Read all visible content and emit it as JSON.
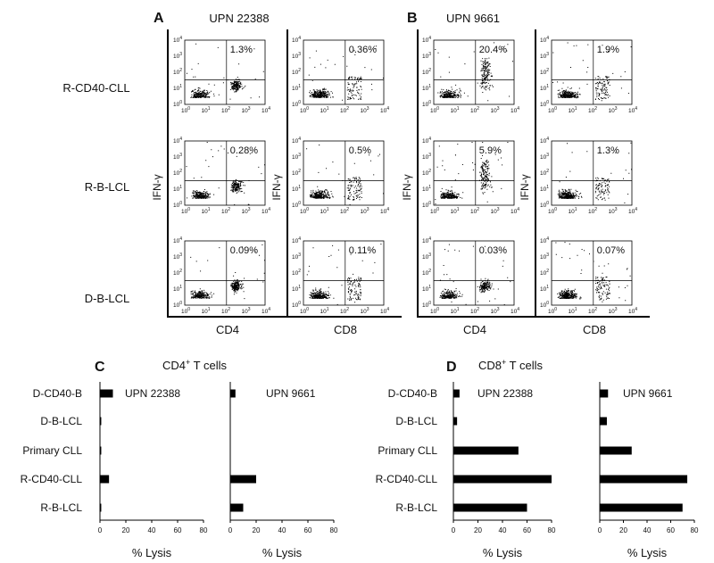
{
  "panel_labels": {
    "A": "A",
    "B": "B",
    "C": "C",
    "D": "D"
  },
  "row_labels": [
    "R-CD40-CLL",
    "R-B-LCL",
    "D-B-LCL"
  ],
  "flow_tick_labels": [
    "10",
    "10",
    "10",
    "10",
    "10"
  ],
  "flow_tick_exponents": [
    "0",
    "1",
    "2",
    "3",
    "4"
  ],
  "chart_data": [
    {
      "type": "scatter",
      "panel": "A",
      "title": "UPN 22388",
      "ylabel": "IFN-γ",
      "xlim": [
        1,
        10000
      ],
      "ylim": [
        1,
        10000
      ],
      "scale": "log",
      "columns": [
        {
          "xlabel": "CD4",
          "percentages": [
            "1.3%",
            "0.28%",
            "0.09%"
          ]
        },
        {
          "xlabel": "CD8",
          "percentages": [
            "0.36%",
            "0.5%",
            "0.11%"
          ]
        }
      ]
    },
    {
      "type": "scatter",
      "panel": "B",
      "title": "UPN 9661",
      "ylabel": "IFN-γ",
      "xlim": [
        1,
        10000
      ],
      "ylim": [
        1,
        10000
      ],
      "scale": "log",
      "columns": [
        {
          "xlabel": "CD4",
          "percentages": [
            "20.4%",
            "5.9%",
            "0.03%"
          ]
        },
        {
          "xlabel": "CD8",
          "percentages": [
            "1.9%",
            "1.3%",
            "0.07%"
          ]
        }
      ]
    },
    {
      "type": "bar",
      "panel": "C",
      "title": "CD4",
      "title_sup": "+",
      "title_suffix": " T cells",
      "categories": [
        "D-CD40-B",
        "D-B-LCL",
        "Primary CLL",
        "R-CD40-CLL",
        "R-B-LCL"
      ],
      "xlabel": "% Lysis",
      "series": [
        {
          "name": "UPN 22388",
          "values": [
            10,
            1,
            1,
            7,
            1
          ],
          "xlim": [
            0,
            80
          ],
          "ticks": [
            "0",
            "20",
            "40",
            "60",
            "80"
          ]
        },
        {
          "name": "UPN 9661",
          "values": [
            4,
            0,
            0,
            20,
            10
          ],
          "xlim": [
            0,
            80
          ],
          "ticks": [
            "0",
            "20",
            "40",
            "60",
            "80"
          ]
        }
      ]
    },
    {
      "type": "bar",
      "panel": "D",
      "title": "CD8",
      "title_sup": "+",
      "title_suffix": " T cells",
      "categories": [
        "D-CD40-B",
        "D-B-LCL",
        "Primary CLL",
        "R-CD40-CLL",
        "R-B-LCL"
      ],
      "xlabel": "% Lysis",
      "series": [
        {
          "name": "UPN 22388",
          "values": [
            5,
            3,
            53,
            80,
            60
          ],
          "xlim": [
            0,
            80
          ],
          "ticks": [
            "0",
            "20",
            "40",
            "60",
            "80"
          ]
        },
        {
          "name": "UPN 9661",
          "values": [
            7,
            6,
            27,
            74,
            70
          ],
          "xlim": [
            0,
            80
          ],
          "ticks": [
            "0",
            "20",
            "40",
            "60",
            "80"
          ]
        }
      ]
    }
  ]
}
